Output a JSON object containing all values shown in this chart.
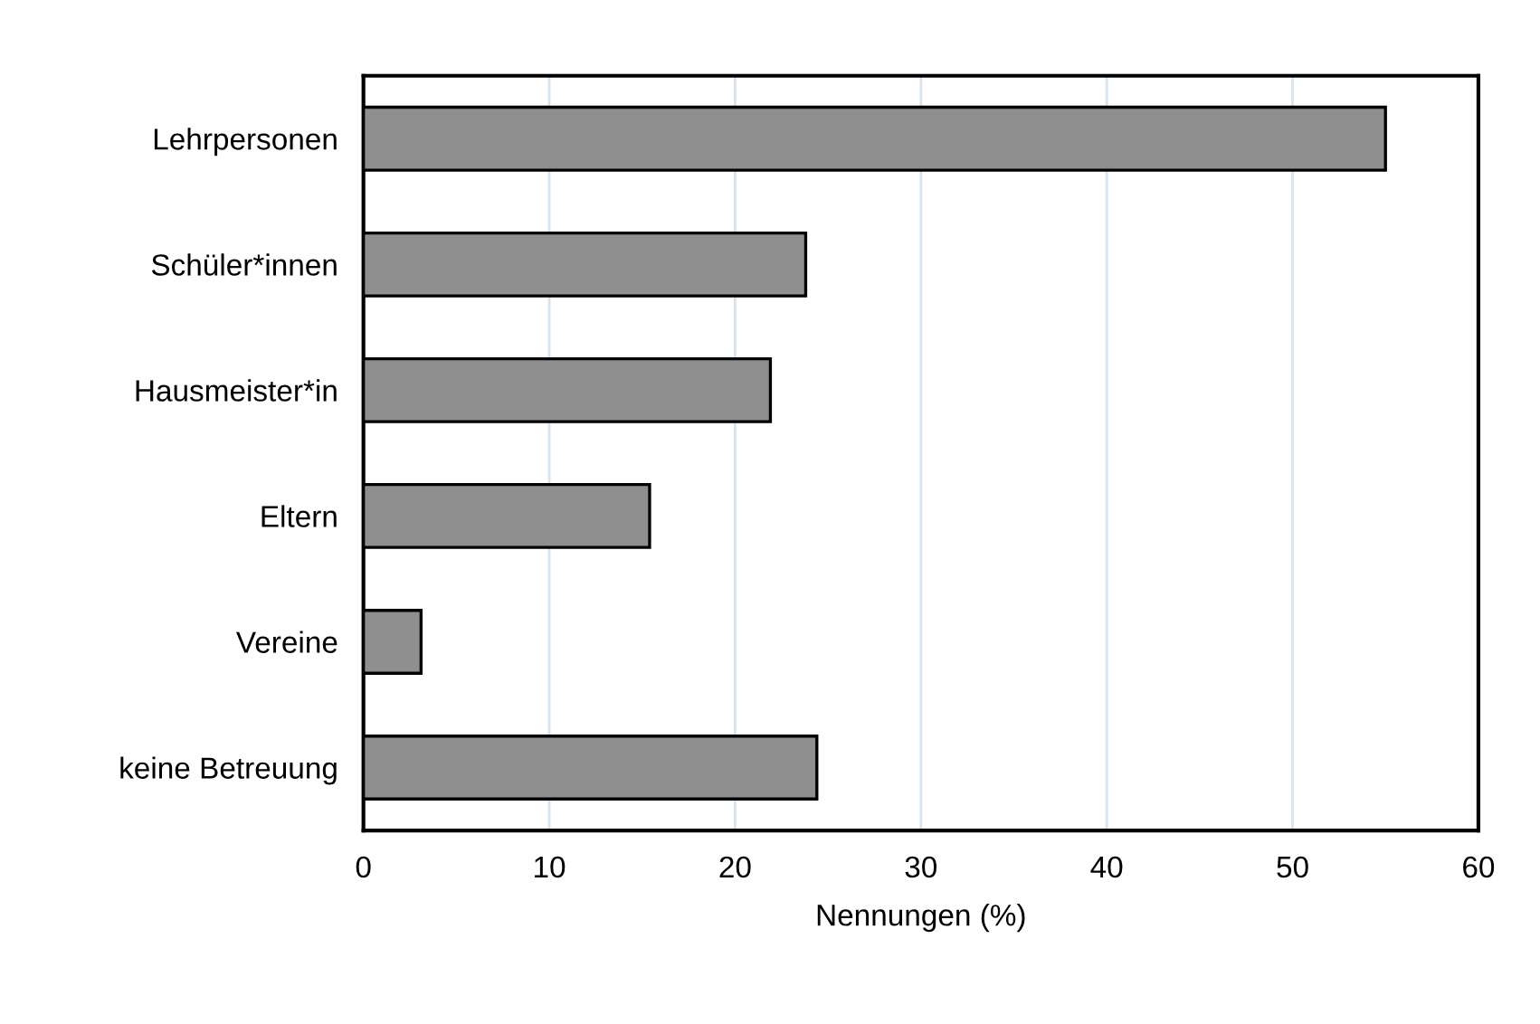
{
  "chart_data": {
    "type": "bar",
    "orientation": "horizontal",
    "xlabel": "Nennungen (%)",
    "categories": [
      "Lehrpersonen",
      "Schüler*innen",
      "Hausmeister*in",
      "Eltern",
      "Vereine",
      "keine Betreuung"
    ],
    "values": [
      55,
      23.8,
      21.9,
      15.4,
      3.1,
      24.4
    ],
    "color": "#8f8f8f",
    "xlim": [
      0,
      60
    ],
    "xticks": [
      0,
      10,
      20,
      30,
      40,
      50,
      60
    ],
    "grid": "x"
  }
}
